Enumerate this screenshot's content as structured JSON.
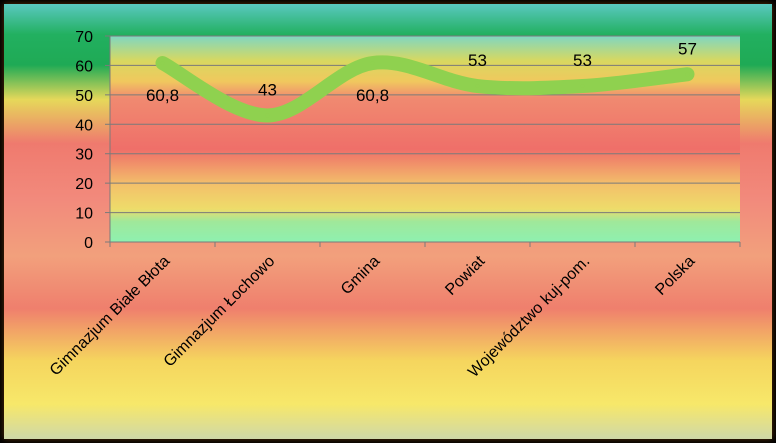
{
  "chart_data": {
    "type": "line",
    "categories": [
      "Gimnazjum Białe Błota",
      "Gimnazjum Łochowo",
      "Gmina",
      "Powiat",
      "Województwo kuj-pom.",
      "Polska"
    ],
    "values": [
      60.8,
      43,
      60.8,
      53,
      53,
      57
    ],
    "data_labels": [
      "60,8",
      "43",
      "60,8",
      "53",
      "53",
      "57"
    ],
    "ylim": [
      0,
      70
    ],
    "yticks": [
      0,
      10,
      20,
      30,
      40,
      50,
      60,
      70
    ],
    "title": "",
    "xlabel": "",
    "ylabel": "",
    "grid": true,
    "line_color": "#8fd14f",
    "frame_color": "#7a4a12"
  }
}
